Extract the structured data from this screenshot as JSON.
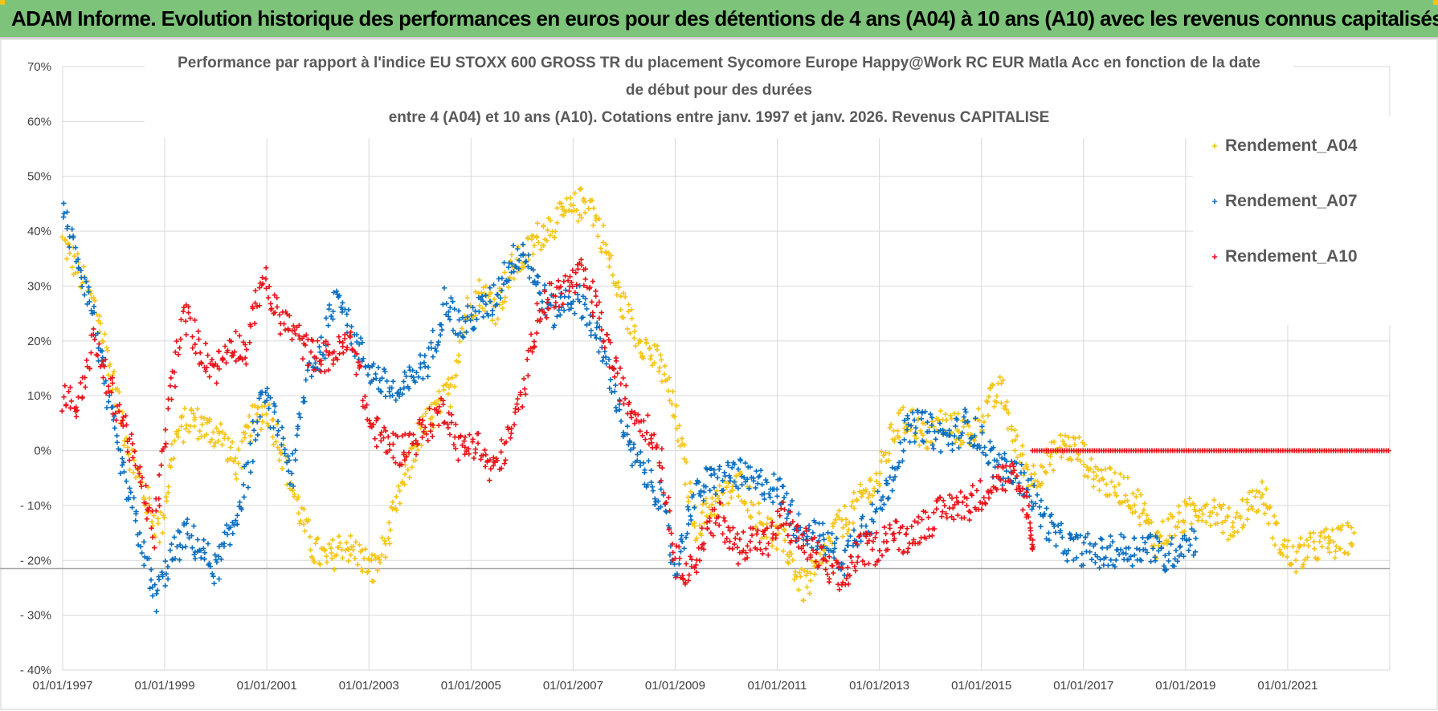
{
  "banner": {
    "title": "ADAM Informe. Evolution historique des performances en euros pour des détentions de 4 ans (A04) à 10 ans (A10) avec les revenus connus capitalisés"
  },
  "colors": {
    "banner_bg": "#7dc37a",
    "A04": "#f5c518",
    "A07": "#0b6fc1",
    "A10": "#e8141b",
    "grid": "#d9d9d9"
  },
  "chart_data": {
    "type": "scatter",
    "title_lines": [
      "Performance par rapport à l'indice EU STOXX 600 GROSS TR  du placement Sycomore Europe Happy@Work RC EUR Matla Acc en fonction de la date",
      "de début pour des durées",
      "entre 4 (A04) et 10 ans (A10).  Cotations entre janv. 1997 et janv. 2026. Revenus CAPITALISE"
    ],
    "xlabel": "",
    "ylabel": "",
    "ylim": [
      -40,
      70
    ],
    "y_ticks": [
      70,
      60,
      50,
      40,
      30,
      20,
      10,
      0,
      -10,
      -20,
      -30,
      -40
    ],
    "y_tick_labels": [
      "70%",
      "60%",
      "50%",
      "40%",
      "30%",
      "20%",
      "10%",
      "0%",
      "- 10%",
      "- 20%",
      "- 30%",
      "- 40%"
    ],
    "xlim": [
      1997.0,
      2023.0
    ],
    "x_ticks": [
      1997,
      1999,
      2001,
      2003,
      2005,
      2007,
      2009,
      2011,
      2013,
      2015,
      2017,
      2019,
      2021
    ],
    "x_tick_labels": [
      "01/01/1997",
      "01/01/1999",
      "01/01/2001",
      "01/01/2003",
      "01/01/2005",
      "01/01/2007",
      "01/01/2009",
      "01/01/2011",
      "01/01/2013",
      "01/01/2015",
      "01/01/2017",
      "01/01/2019",
      "01/01/2021"
    ],
    "grid": true,
    "legend_position": "top-right",
    "marker": "+",
    "series": [
      {
        "name": "Rendement_A04",
        "x": [
          1997.0,
          1997.3,
          1997.7,
          1998.0,
          1998.3,
          1998.6,
          1998.9,
          1999.2,
          1999.5,
          1999.8,
          2000.1,
          2000.4,
          2000.7,
          2001.0,
          2001.3,
          2001.6,
          2001.9,
          2002.2,
          2002.5,
          2002.8,
          2003.1,
          2003.4,
          2003.7,
          2004.0,
          2004.3,
          2004.6,
          2004.9,
          2005.2,
          2005.5,
          2005.8,
          2006.1,
          2006.4,
          2006.7,
          2007.0,
          2007.3,
          2007.6,
          2007.9,
          2008.2,
          2008.5,
          2008.8,
          2009.1,
          2009.4,
          2009.7,
          2010.0,
          2010.3,
          2010.6,
          2010.9,
          2011.2,
          2011.5,
          2011.8,
          2012.1,
          2012.4,
          2012.7,
          2013.0,
          2013.3,
          2013.6,
          2013.9,
          2014.2,
          2014.5,
          2014.8,
          2015.1,
          2015.4,
          2015.7,
          2016.0,
          2016.3,
          2016.6,
          2016.9,
          2017.2,
          2017.5,
          2017.8,
          2018.1,
          2018.4,
          2018.7,
          2019.0,
          2019.3,
          2019.6,
          2019.9,
          2020.2,
          2020.5,
          2020.8,
          2021.1,
          2021.4,
          2021.7,
          2022.0,
          2022.3
        ],
        "y": [
          38,
          33,
          25,
          12,
          0,
          -8,
          -15,
          2,
          6,
          4,
          3,
          -3,
          5,
          8,
          0,
          -10,
          -18,
          -20,
          -17,
          -19,
          -22,
          -15,
          -5,
          3,
          7,
          11,
          25,
          29,
          26,
          33,
          36,
          40,
          42,
          44,
          46,
          38,
          28,
          22,
          18,
          14,
          2,
          -14,
          -10,
          -8,
          -6,
          -12,
          -15,
          -18,
          -25,
          -22,
          -15,
          -12,
          -8,
          -5,
          4,
          6,
          2,
          5,
          4,
          3,
          8,
          11,
          0,
          -5,
          -2,
          1,
          0,
          -4,
          -6,
          -7,
          -10,
          -17,
          -14,
          -12,
          -10,
          -11,
          -14,
          -10,
          -8,
          -16,
          -20,
          -18,
          -17,
          -17,
          -15
        ]
      },
      {
        "name": "Rendement_A07",
        "x": [
          1997.0,
          1997.3,
          1997.6,
          1997.9,
          1998.2,
          1998.5,
          1998.8,
          1999.1,
          1999.4,
          1999.7,
          2000.0,
          2000.3,
          2000.6,
          2000.9,
          2001.2,
          2001.5,
          2001.8,
          2002.1,
          2002.4,
          2002.7,
          2003.0,
          2003.3,
          2003.6,
          2003.9,
          2004.2,
          2004.5,
          2004.8,
          2005.1,
          2005.4,
          2005.7,
          2006.0,
          2006.3,
          2006.6,
          2006.9,
          2007.2,
          2007.5,
          2007.8,
          2008.1,
          2008.4,
          2008.7,
          2009.0,
          2009.3,
          2009.6,
          2009.9,
          2010.2,
          2010.5,
          2010.8,
          2011.1,
          2011.4,
          2011.7,
          2012.0,
          2012.3,
          2012.6,
          2012.9,
          2013.2,
          2013.5,
          2013.8,
          2014.1,
          2014.4,
          2014.7,
          2015.0,
          2015.3,
          2015.6,
          2015.9,
          2016.2,
          2016.5,
          2016.8,
          2017.1,
          2017.4,
          2017.7,
          2018.0,
          2018.3,
          2018.6,
          2018.9,
          2019.2
        ],
        "y": [
          43,
          35,
          25,
          8,
          -5,
          -15,
          -27,
          -20,
          -15,
          -18,
          -22,
          -15,
          -5,
          10,
          5,
          -5,
          15,
          18,
          30,
          20,
          15,
          12,
          10,
          14,
          17,
          28,
          22,
          25,
          27,
          33,
          37,
          30,
          25,
          28,
          27,
          20,
          12,
          0,
          -4,
          -8,
          -22,
          -10,
          -6,
          -5,
          -4,
          -6,
          -6,
          -8,
          -14,
          -15,
          -17,
          -20,
          -14,
          -12,
          -6,
          3,
          5,
          3,
          2,
          5,
          2,
          -3,
          -4,
          -6,
          -12,
          -16,
          -18,
          -18,
          -19,
          -18,
          -18,
          -17,
          -20,
          -17,
          -16
        ]
      },
      {
        "name": "Rendement_A10",
        "x": [
          1997.0,
          1997.3,
          1997.6,
          1997.9,
          1998.2,
          1998.5,
          1998.8,
          1999.1,
          1999.4,
          1999.7,
          2000.0,
          2000.3,
          2000.6,
          2000.9,
          2001.2,
          2001.5,
          2001.8,
          2002.1,
          2002.4,
          2002.7,
          2003.0,
          2003.3,
          2003.6,
          2003.9,
          2004.2,
          2004.5,
          2004.8,
          2005.1,
          2005.4,
          2005.7,
          2006.0,
          2006.3,
          2006.6,
          2006.9,
          2007.2,
          2007.5,
          2007.8,
          2008.1,
          2008.4,
          2008.7,
          2009.0,
          2009.3,
          2009.6,
          2009.9,
          2010.2,
          2010.5,
          2010.8,
          2011.1,
          2011.4,
          2011.7,
          2012.0,
          2012.3,
          2012.6,
          2012.9,
          2013.2,
          2013.5,
          2013.8,
          2014.1,
          2014.4,
          2014.7,
          2015.0,
          2015.3,
          2015.6,
          2015.9,
          2016.0
        ],
        "y": [
          10,
          8,
          20,
          12,
          5,
          -5,
          -15,
          10,
          25,
          18,
          15,
          20,
          18,
          32,
          25,
          22,
          18,
          17,
          18,
          20,
          5,
          2,
          0,
          2,
          5,
          8,
          0,
          2,
          -4,
          1,
          10,
          25,
          28,
          30,
          32,
          25,
          15,
          8,
          5,
          0,
          -20,
          -22,
          -15,
          -12,
          -18,
          -16,
          -17,
          -12,
          -16,
          -18,
          -22,
          -24,
          -18,
          -18,
          -15,
          -16,
          -14,
          -12,
          -10,
          -10,
          -8,
          -5,
          -5,
          -10,
          -18
        ]
      }
    ],
    "flat_segment": {
      "series": "Rendement_A10",
      "x_range": [
        2016.0,
        2023.0
      ],
      "y": 0
    },
    "reference_line_y": -21.5
  }
}
